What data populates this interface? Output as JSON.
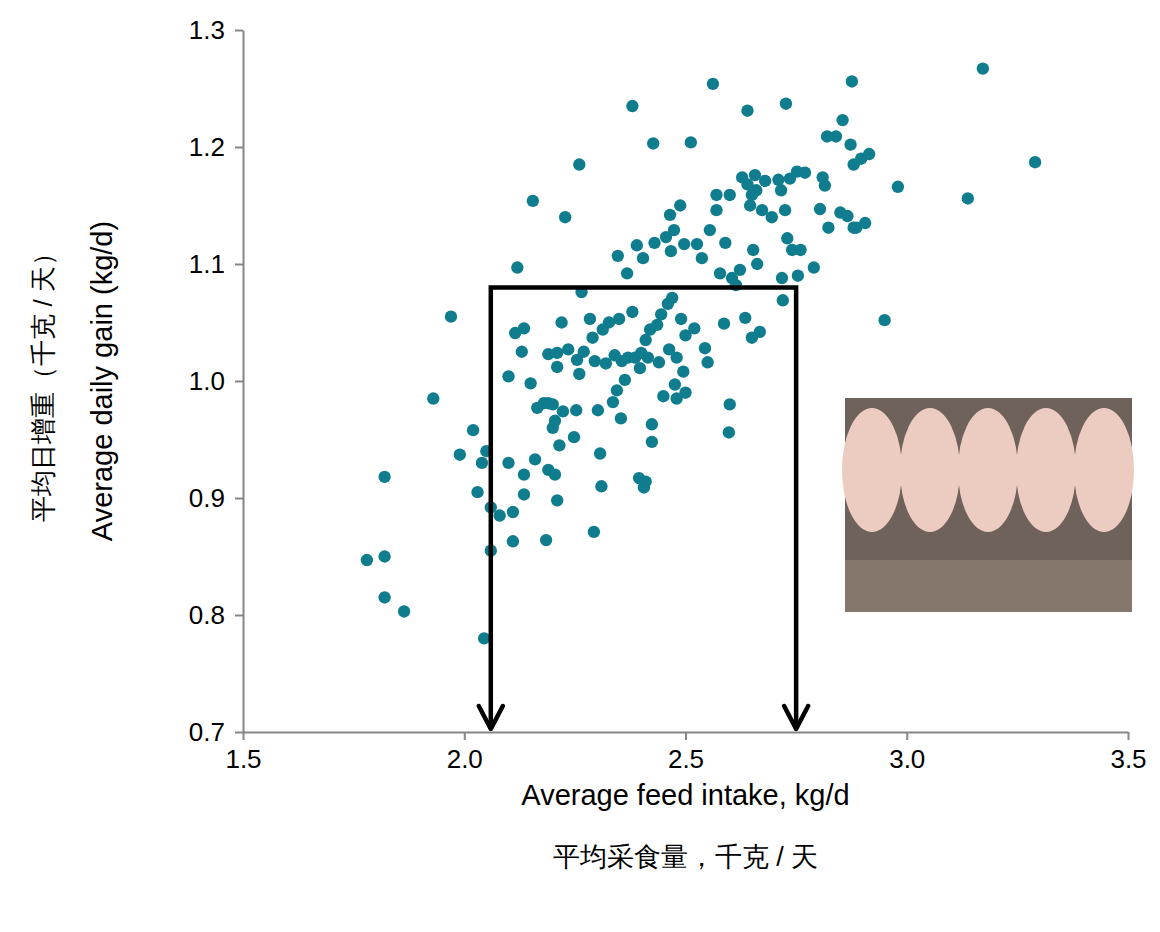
{
  "chart_data": {
    "type": "scatter",
    "xlabel": [
      "Average feed intake, kg/d",
      "平均采食量，千克 / 天"
    ],
    "ylabel": [
      "平均日增重（千克 / 天）",
      "Average daily gain (kg/d)"
    ],
    "color": "#0f7d8e",
    "marker": "circle",
    "grid": false,
    "xlim": [
      1.5,
      3.5
    ],
    "xticks": [
      1.5,
      {
        "value": 2,
        "label": "2.0"
      },
      2.5,
      {
        "value": 3,
        "label": "3.0"
      },
      3.5
    ],
    "ylim": [
      0.7,
      1.3
    ],
    "yticks": [
      0.7,
      0.8,
      0.9,
      {
        "value": 1,
        "label": "1.0"
      },
      1.1,
      1.2,
      1.3
    ],
    "bracket": {
      "x": [
        2.06,
        2.75
      ],
      "y": 1.08
    },
    "x": [
      1.78,
      1.82,
      1.82,
      1.82,
      1.864,
      1.93,
      1.97,
      1.99,
      2.02,
      2.03,
      2.04,
      2.045,
      2.05,
      2.06,
      2.06,
      2.08,
      2.1,
      2.1,
      2.11,
      2.11,
      2.12,
      2.115,
      2.135,
      2.13,
      2.135,
      2.135,
      2.15,
      2.155,
      2.16,
      2.165,
      2.18,
      2.185,
      2.19,
      2.19,
      2.19,
      2.2,
      2.2,
      2.205,
      2.21,
      2.205,
      2.21,
      2.215,
      2.21,
      2.22,
      2.223,
      2.228,
      2.235,
      2.248,
      2.253,
      2.255,
      2.26,
      2.26,
      2.265,
      2.27,
      2.284,
      2.29,
      2.293,
      2.295,
      2.302,
      2.307,
      2.31,
      2.313,
      2.32,
      2.327,
      2.336,
      2.34,
      2.345,
      2.347,
      2.354,
      2.35,
      2.356,
      2.363,
      2.368,
      2.37,
      2.38,
      2.38,
      2.386,
      2.39,
      2.395,
      2.397,
      2.4,
      2.404,
      2.406,
      2.41,
      2.41,
      2.415,
      2.42,
      2.424,
      2.424,
      2.427,
      2.43,
      2.436,
      2.44,
      2.445,
      2.45,
      2.456,
      2.46,
      2.463,
      2.465,
      2.467,
      2.47,
      2.474,
      2.476,
      2.48,
      2.48,
      2.488,
      2.49,
      2.495,
      2.497,
      2.5,
      2.5,
      2.512,
      2.52,
      2.526,
      2.537,
      2.544,
      2.55,
      2.555,
      2.562,
      2.57,
      2.57,
      2.578,
      2.587,
      2.59,
      2.598,
      2.6,
      2.6,
      2.605,
      2.614,
      2.623,
      2.628,
      2.635,
      2.64,
      2.64,
      2.646,
      2.65,
      2.65,
      2.653,
      2.657,
      2.66,
      2.662,
      2.668,
      2.673,
      2.68,
      2.695,
      2.71,
      2.716,
      2.718,
      2.72,
      2.725,
      2.727,
      2.73,
      2.736,
      2.741,
      2.752,
      2.754,
      2.76,
      2.77,
      2.79,
      2.804,
      2.81,
      2.815,
      2.82,
      2.823,
      2.84,
      2.85,
      2.855,
      2.866,
      2.873,
      2.876,
      2.88,
      2.88,
      2.886,
      2.897,
      2.906,
      2.915,
      2.95,
      2.98,
      3.138,
      3.172,
      3.29
    ],
    "values": [
      0.847,
      0.85,
      0.918,
      0.815,
      0.803,
      0.985,
      1.055,
      0.937,
      0.958,
      0.905,
      0.93,
      0.78,
      0.94,
      0.855,
      0.892,
      0.885,
      0.93,
      1.004,
      0.888,
      0.863,
      1.097,
      1.041,
      1.045,
      1.025,
      0.92,
      0.903,
      0.998,
      1.154,
      0.933,
      0.977,
      0.981,
      0.864,
      0.924,
      1.023,
      0.981,
      0.96,
      0.98,
      0.92,
      1.012,
      0.966,
      0.898,
      0.945,
      1.024,
      1.05,
      0.974,
      1.14,
      1.027,
      0.952,
      0.975,
      1.018,
      1.006,
      1.185,
      1.076,
      1.025,
      1.053,
      1.037,
      0.871,
      1.017,
      0.975,
      0.938,
      0.91,
      1.044,
      1.015,
      1.05,
      0.982,
      1.022,
      0.992,
      1.107,
      0.968,
      1.053,
      1.017,
      1.001,
      1.092,
      1.02,
      1.235,
      1.059,
      1.02,
      1.116,
      0.917,
      1.011,
      1.024,
      1.105,
      0.909,
      1.035,
      0.914,
      1.02,
      1.044,
      0.948,
      0.963,
      1.203,
      1.118,
      1.048,
      1.016,
      1.057,
      0.987,
      1.123,
      1.066,
      1.027,
      1.142,
      1.111,
      1.071,
      1.129,
      0.997,
      0.985,
      1.02,
      1.15,
      1.053,
      1.008,
      1.117,
      0.99,
      1.039,
      1.204,
      1.045,
      1.117,
      1.105,
      1.028,
      1.016,
      1.129,
      1.254,
      1.159,
      1.146,
      1.092,
      1.049,
      1.118,
      0.956,
      0.98,
      1.159,
      1.088,
      1.082,
      1.095,
      1.174,
      1.054,
      1.231,
      1.168,
      1.15,
      1.159,
      1.037,
      1.112,
      1.176,
      1.163,
      1.1,
      1.042,
      1.146,
      1.171,
      1.14,
      1.172,
      1.163,
      1.088,
      1.069,
      1.146,
      1.237,
      1.122,
      1.173,
      1.112,
      1.179,
      1.09,
      1.112,
      1.178,
      1.097,
      1.147,
      1.174,
      1.167,
      1.209,
      1.131,
      1.209,
      1.144,
      1.223,
      1.141,
      1.202,
      1.256,
      1.131,
      1.185,
      1.131,
      1.19,
      1.135,
      1.194,
      1.052,
      1.166,
      1.156,
      1.267,
      1.187
    ]
  }
}
